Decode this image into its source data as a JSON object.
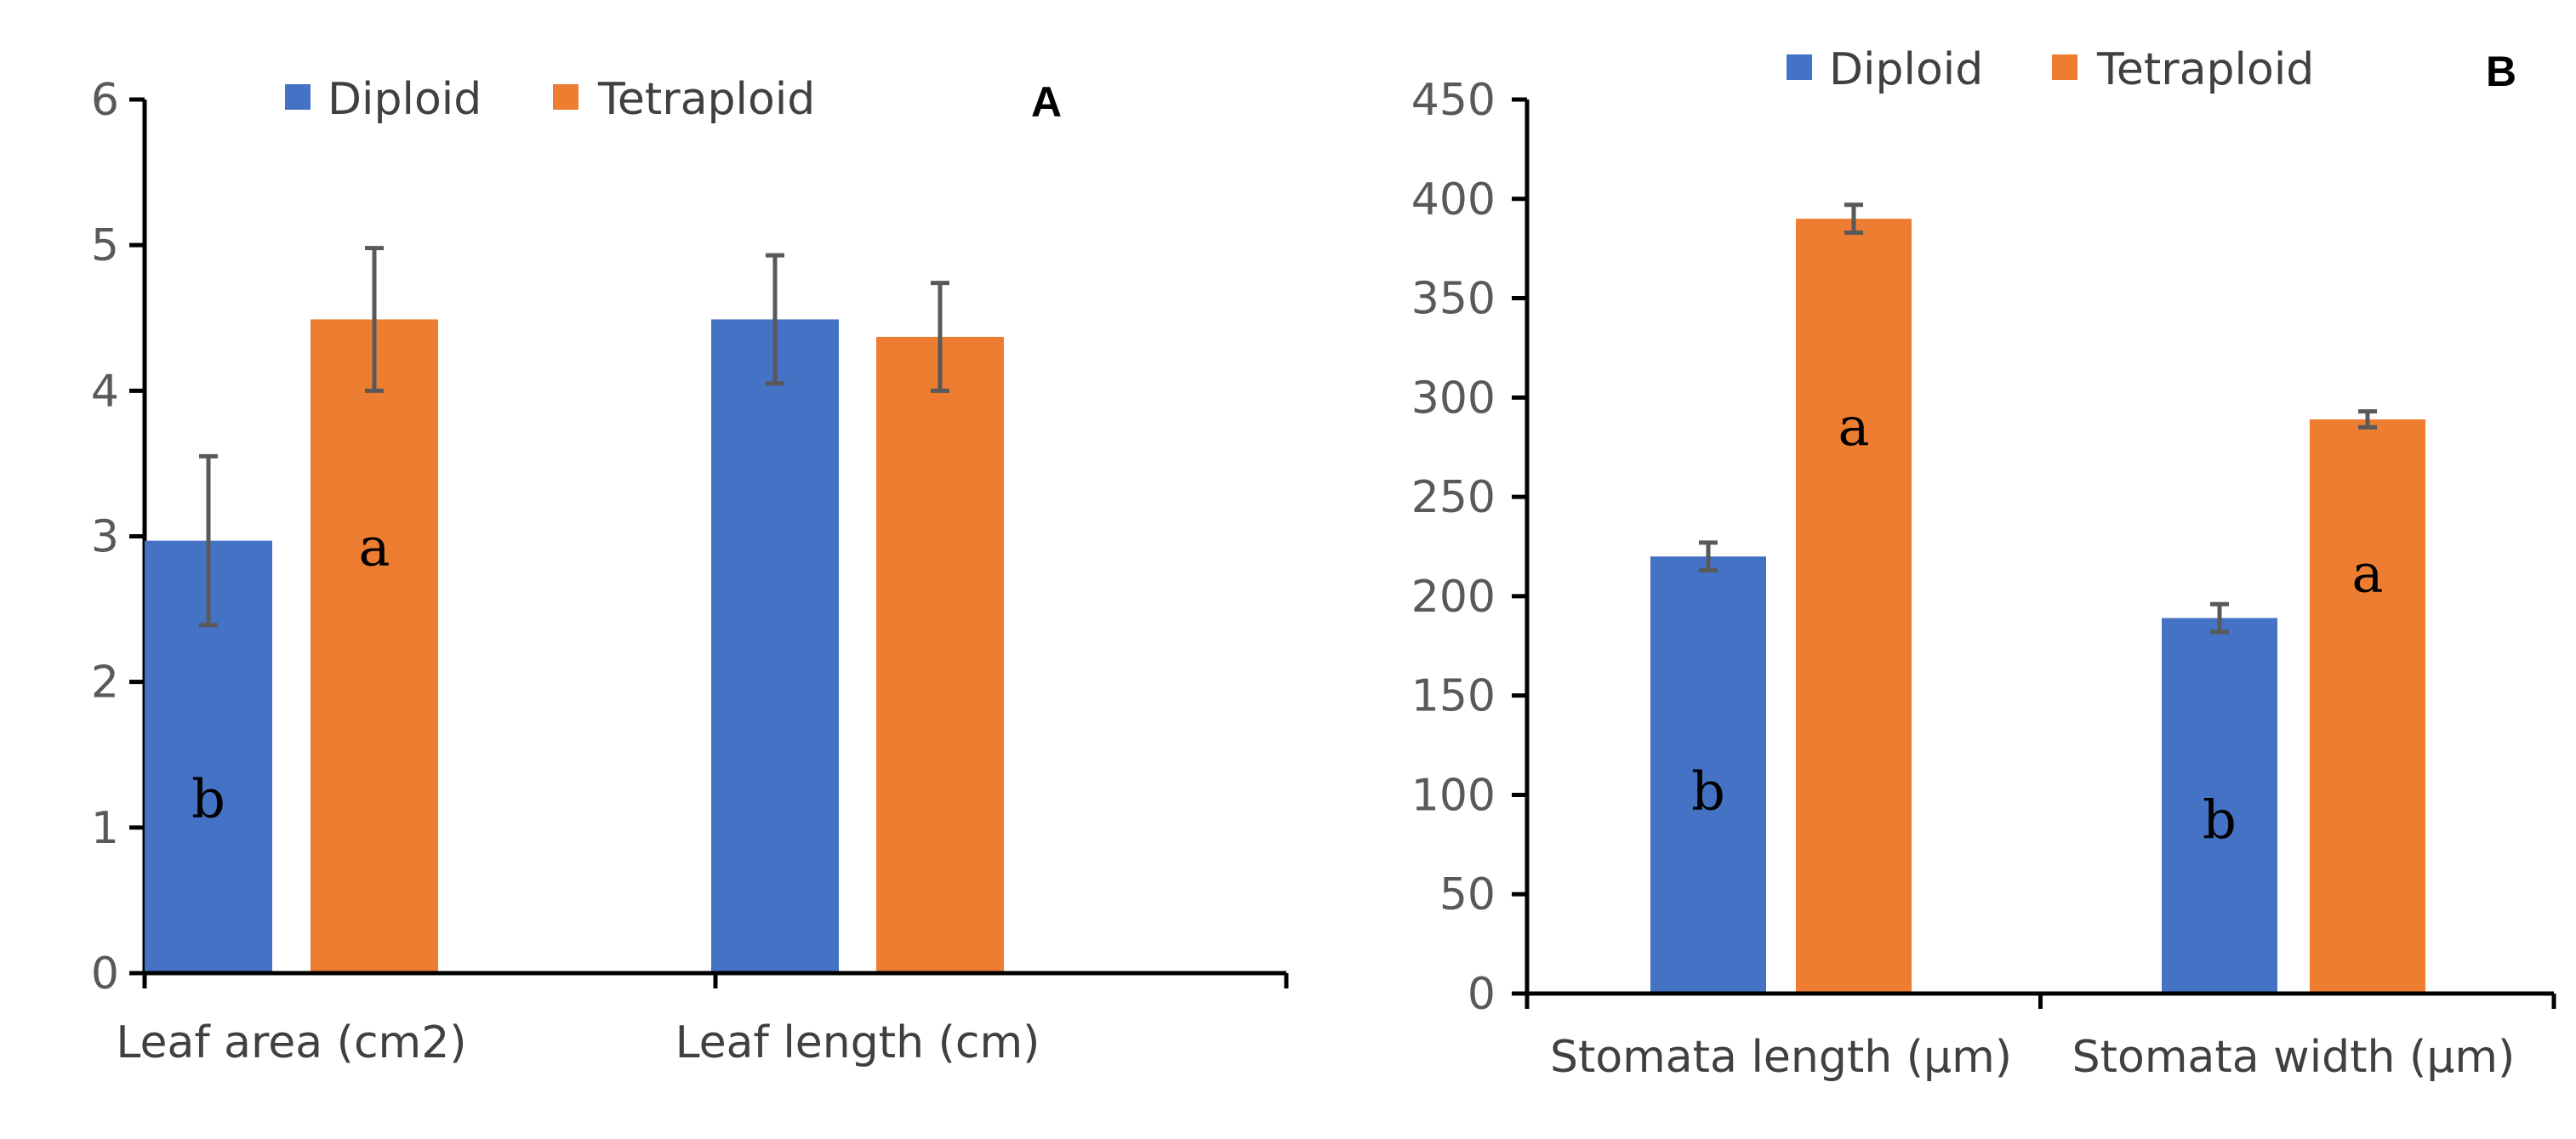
{
  "colors": {
    "diploid": "#4472C4",
    "tetraploid": "#ED7D31",
    "axis": "#000000",
    "error_bar": "#595959"
  },
  "chart_data": [
    {
      "type": "bar",
      "panel_label": "A",
      "categories": [
        "Leaf area (cm2)",
        "Leaf length (cm)"
      ],
      "series": [
        {
          "name": "Diploid",
          "values": [
            2.97,
            4.49
          ],
          "errors": [
            0.58,
            0.44
          ],
          "sig_letters": [
            "b",
            ""
          ]
        },
        {
          "name": "Tetraploid",
          "values": [
            4.49,
            4.37
          ],
          "errors": [
            0.49,
            0.37
          ],
          "sig_letters": [
            "a",
            ""
          ]
        }
      ],
      "ylim": [
        0,
        6
      ],
      "yticks": [
        0,
        1,
        2,
        3,
        4,
        5,
        6
      ],
      "xlabel": "",
      "ylabel": "",
      "legend": "top-center"
    },
    {
      "type": "bar",
      "panel_label": "B",
      "categories": [
        "Stomata length (µm)",
        "Stomata width (µm)"
      ],
      "series": [
        {
          "name": "Diploid",
          "values": [
            220,
            189
          ],
          "errors": [
            7,
            7
          ],
          "sig_letters": [
            "b",
            "b"
          ]
        },
        {
          "name": "Tetraploid",
          "values": [
            390,
            289
          ],
          "errors": [
            7,
            4
          ],
          "sig_letters": [
            "a",
            "a"
          ]
        }
      ],
      "ylim": [
        0,
        450
      ],
      "yticks": [
        0,
        50,
        100,
        150,
        200,
        250,
        300,
        350,
        400,
        450
      ],
      "xlabel": "",
      "ylabel": "",
      "legend": "top-center"
    }
  ]
}
